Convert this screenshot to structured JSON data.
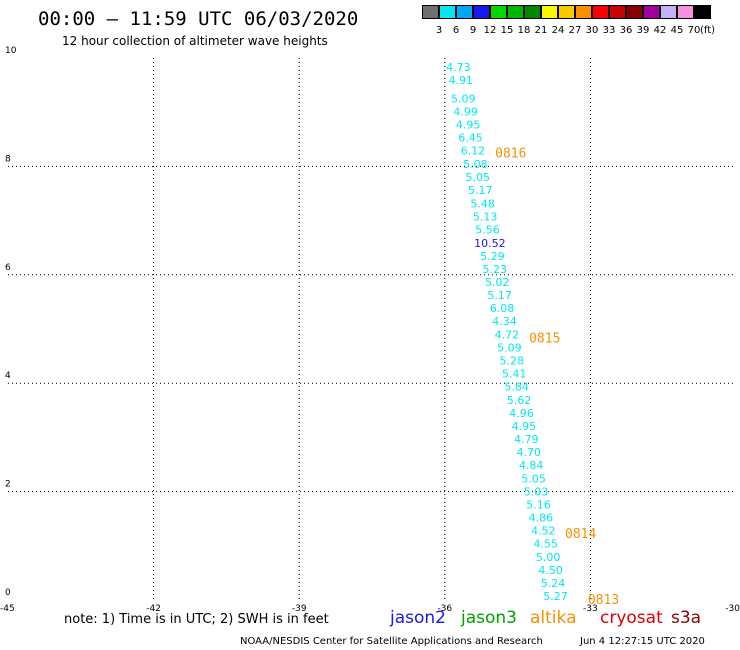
{
  "header": {
    "title": "00:00 – 11:59 UTC 06/03/2020",
    "subtitle": "12 hour collection of altimeter wave heights"
  },
  "legend": {
    "unit": "(ft)",
    "items": [
      {
        "label": "3",
        "color": "#707070"
      },
      {
        "label": "6",
        "color": "#00e8f0"
      },
      {
        "label": "9",
        "color": "#00a8f8"
      },
      {
        "label": "12",
        "color": "#1818f0"
      },
      {
        "label": "15",
        "color": "#00d800"
      },
      {
        "label": "18",
        "color": "#00b800"
      },
      {
        "label": "21",
        "color": "#008800"
      },
      {
        "label": "24",
        "color": "#f8f800"
      },
      {
        "label": "27",
        "color": "#f8c800"
      },
      {
        "label": "30",
        "color": "#f89000"
      },
      {
        "label": "33",
        "color": "#f80000"
      },
      {
        "label": "36",
        "color": "#c80000"
      },
      {
        "label": "39",
        "color": "#880000"
      },
      {
        "label": "42",
        "color": "#a000a0"
      },
      {
        "label": "45",
        "color": "#c8b0f8"
      },
      {
        "label": "70",
        "color": "#f890e0"
      },
      {
        "label": "",
        "color": "#000000"
      }
    ]
  },
  "chart_data": {
    "type": "scatter",
    "xlim": [
      -45,
      -30
    ],
    "ylim": [
      0,
      10
    ],
    "x_ticks": [
      "-45",
      "-42",
      "-39",
      "-36",
      "-33",
      "-30"
    ],
    "y_ticks": [
      "0",
      "2",
      "4",
      "6",
      "8",
      "10"
    ],
    "grid": true,
    "series": [
      {
        "name": "altika",
        "color": "#00e8f0",
        "points": [
          {
            "lon": -35.72,
            "lat": 9.83,
            "v": "4.73"
          },
          {
            "lon": -35.67,
            "lat": 9.59,
            "v": "4.91"
          },
          {
            "lon": -35.62,
            "lat": 9.25,
            "v": "5.09"
          },
          {
            "lon": -35.57,
            "lat": 9.01,
            "v": "4.99"
          },
          {
            "lon": -35.52,
            "lat": 8.77,
            "v": "4.95"
          },
          {
            "lon": -35.47,
            "lat": 8.53,
            "v": "6.45"
          },
          {
            "lon": -35.42,
            "lat": 8.29,
            "v": "6.12"
          },
          {
            "lon": -35.37,
            "lat": 8.04,
            "v": "5.08"
          },
          {
            "lon": -35.32,
            "lat": 7.8,
            "v": "5.05"
          },
          {
            "lon": -35.27,
            "lat": 7.56,
            "v": "5.17"
          },
          {
            "lon": -35.22,
            "lat": 7.32,
            "v": "5.48"
          },
          {
            "lon": -35.17,
            "lat": 7.08,
            "v": "5.13"
          },
          {
            "lon": -35.12,
            "lat": 6.84,
            "v": "5.56"
          },
          {
            "lon": -35.07,
            "lat": 6.59,
            "v": "10.52",
            "color": "#1818f0"
          },
          {
            "lon": -35.02,
            "lat": 6.35,
            "v": "5.29"
          },
          {
            "lon": -34.97,
            "lat": 6.11,
            "v": "5.23"
          },
          {
            "lon": -34.92,
            "lat": 5.87,
            "v": "5.02"
          },
          {
            "lon": -34.87,
            "lat": 5.63,
            "v": "5.17"
          },
          {
            "lon": -34.82,
            "lat": 5.39,
            "v": "6.08"
          },
          {
            "lon": -34.77,
            "lat": 5.15,
            "v": "4.34"
          },
          {
            "lon": -34.72,
            "lat": 4.9,
            "v": "4.72"
          },
          {
            "lon": -34.67,
            "lat": 4.66,
            "v": "5.09"
          },
          {
            "lon": -34.62,
            "lat": 4.42,
            "v": "5.28"
          },
          {
            "lon": -34.57,
            "lat": 4.18,
            "v": "5.41"
          },
          {
            "lon": -34.52,
            "lat": 3.94,
            "v": "5.84"
          },
          {
            "lon": -34.47,
            "lat": 3.69,
            "v": "5.62"
          },
          {
            "lon": -34.42,
            "lat": 3.45,
            "v": "4.96"
          },
          {
            "lon": -34.37,
            "lat": 3.21,
            "v": "4.95"
          },
          {
            "lon": -34.32,
            "lat": 2.97,
            "v": "4.79"
          },
          {
            "lon": -34.27,
            "lat": 2.73,
            "v": "4.70"
          },
          {
            "lon": -34.22,
            "lat": 2.49,
            "v": "4.84"
          },
          {
            "lon": -34.17,
            "lat": 2.24,
            "v": "5.05"
          },
          {
            "lon": -34.12,
            "lat": 2.0,
            "v": "5.03"
          },
          {
            "lon": -34.07,
            "lat": 1.76,
            "v": "5.16"
          },
          {
            "lon": -34.02,
            "lat": 1.52,
            "v": "4.86"
          },
          {
            "lon": -33.97,
            "lat": 1.28,
            "v": "4.52"
          },
          {
            "lon": -33.92,
            "lat": 1.04,
            "v": "4.55"
          },
          {
            "lon": -33.87,
            "lat": 0.79,
            "v": "5.00"
          },
          {
            "lon": -33.82,
            "lat": 0.55,
            "v": "4.50"
          },
          {
            "lon": -33.77,
            "lat": 0.31,
            "v": "5.24"
          },
          {
            "lon": -33.72,
            "lat": 0.07,
            "v": "5.27"
          }
        ]
      }
    ],
    "time_labels": [
      {
        "lon": -34.64,
        "lat": 8.26,
        "text": "0816"
      },
      {
        "lon": -33.94,
        "lat": 4.84,
        "text": "0815"
      },
      {
        "lon": -33.2,
        "lat": 1.24,
        "text": "0814"
      },
      {
        "lon": -32.73,
        "lat": 0.02,
        "text": "0813"
      }
    ],
    "time_label_color": "#f89000"
  },
  "footer": {
    "note": "note: 1) Time is in UTC; 2) SWH is in feet",
    "satellites": [
      {
        "name": "jason2",
        "color": "#1818f0"
      },
      {
        "name": "jason3",
        "color": "#00a000"
      },
      {
        "name": "altika",
        "color": "#f89000"
      },
      {
        "name": "cryosat",
        "color": "#e00000"
      },
      {
        "name": "s3a",
        "color": "#900000"
      }
    ],
    "credit": "NOAA/NESDIS Center for Satellite Applications and Research",
    "timestamp": "Jun  4 12:27:15 UTC 2020"
  }
}
